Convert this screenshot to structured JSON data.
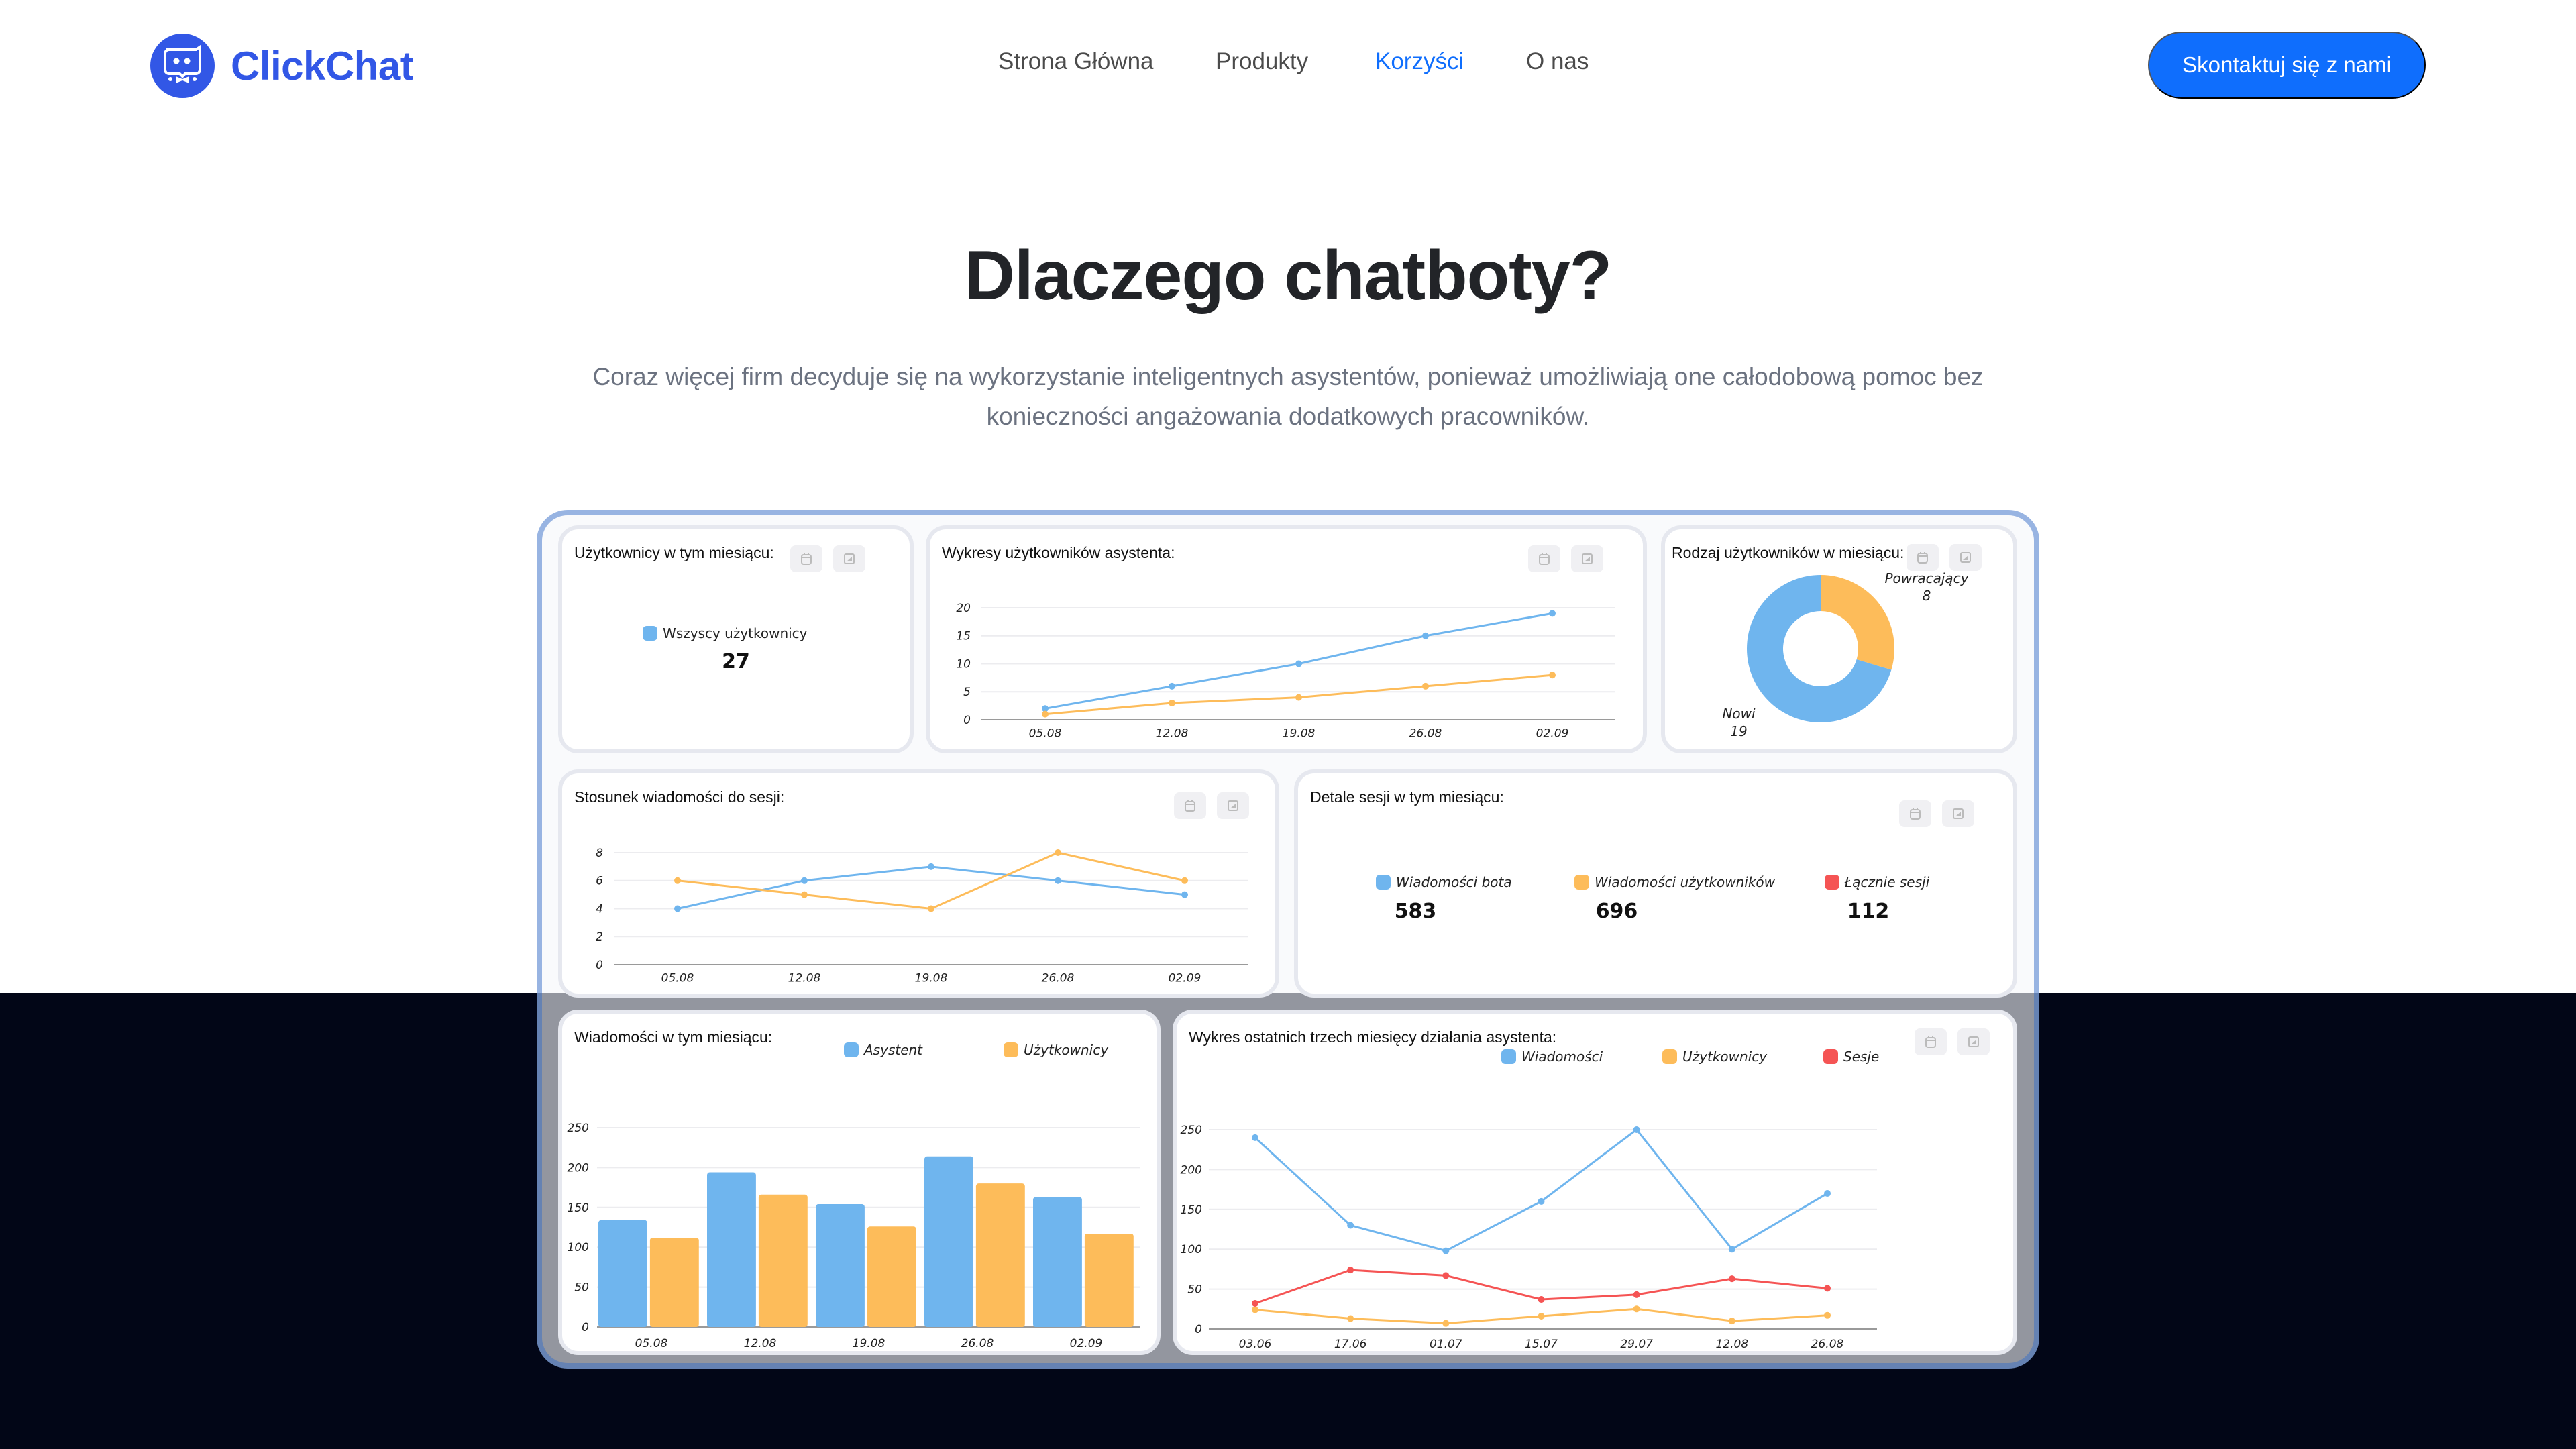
{
  "brand": {
    "name": "ClickChat",
    "color": "#3257e6"
  },
  "nav": {
    "items": [
      {
        "label": "Strona Główna",
        "active": false
      },
      {
        "label": "Produkty",
        "active": false
      },
      {
        "label": "Korzyści",
        "active": true
      },
      {
        "label": "O nas",
        "active": false
      }
    ],
    "cta_label": "Skontaktuj się z nami"
  },
  "hero": {
    "title": "Dlaczego chatboty?",
    "subtitle": "Coraz więcej firm decyduje się na wykorzystanie inteligentnych asystentów, ponieważ umożliwiają one całodobową pomoc bez konieczności angażowania dodatkowych pracowników."
  },
  "colors": {
    "blue": "#6fb5ee",
    "orange": "#fdbc5a",
    "red": "#f55454",
    "accent": "#0f6efd"
  },
  "dashboard": {
    "tool_icons": [
      "calendar-icon",
      "chart-image-icon"
    ],
    "users_card": {
      "title": "Użytkownicy w tym miesiącu:",
      "legend": "Wszyscy użytkownicy",
      "value": "27"
    },
    "users_chart_card": {
      "title": "Wykresy użytkowników asystenta:"
    },
    "user_type_card": {
      "title": "Rodzaj użytkowników w miesiącu:",
      "returning_label": "Powracający",
      "returning_value": "8",
      "new_label": "Nowi",
      "new_value": "19"
    },
    "ratio_card": {
      "title": "Stosunek wiadomości do sesji:"
    },
    "session_card": {
      "title": "Detale sesji w tym miesiącu:",
      "stats": [
        {
          "label": "Wiadomości bota",
          "value": "583"
        },
        {
          "label": "Wiadomości użytkowników",
          "value": "696"
        },
        {
          "label": "Łącznie sesji",
          "value": "112"
        }
      ]
    },
    "messages_card": {
      "title": "Wiadomości w tym miesiącu:",
      "legend": [
        "Asystent",
        "Użytkownicy"
      ]
    },
    "three_months_card": {
      "title": "Wykres ostatnich trzech miesięcy działania asystenta:",
      "legend": [
        "Wiadomości",
        "Użytkownicy",
        "Sesje"
      ]
    }
  },
  "chart_data": [
    {
      "type": "line",
      "title": "Wykresy użytkowników asystenta:",
      "categories": [
        "05.08",
        "12.08",
        "19.08",
        "26.08",
        "02.09"
      ],
      "series": [
        {
          "name": "blue",
          "color": "#6fb5ee",
          "values": [
            2,
            6,
            10,
            15,
            19
          ]
        },
        {
          "name": "orange",
          "color": "#fdbc5a",
          "values": [
            1,
            3,
            4,
            6,
            8
          ]
        }
      ],
      "yticks": [
        0,
        5,
        10,
        15,
        20
      ],
      "ylim": [
        0,
        20
      ],
      "grid": true
    },
    {
      "type": "pie",
      "title": "Rodzaj użytkowników w miesiącu:",
      "categories": [
        "Powracający",
        "Nowi"
      ],
      "values": [
        8,
        19
      ],
      "colors": [
        "#fdbc5a",
        "#6fb5ee"
      ],
      "donut": true
    },
    {
      "type": "line",
      "title": "Stosunek wiadomości do sesji:",
      "categories": [
        "05.08",
        "12.08",
        "19.08",
        "26.08",
        "02.09"
      ],
      "series": [
        {
          "name": "blue",
          "color": "#6fb5ee",
          "values": [
            4,
            6,
            7,
            6,
            5
          ]
        },
        {
          "name": "orange",
          "color": "#fdbc5a",
          "values": [
            6,
            5,
            4,
            8,
            6
          ]
        }
      ],
      "yticks": [
        0,
        2,
        4,
        6,
        8
      ],
      "ylim": [
        0,
        8
      ],
      "grid": true
    },
    {
      "type": "bar",
      "title": "Wiadomości w tym miesiącu:",
      "categories": [
        "05.08",
        "12.08",
        "19.08",
        "26.08",
        "02.09"
      ],
      "series": [
        {
          "name": "Asystent",
          "color": "#6fb5ee",
          "values": [
            134,
            194,
            154,
            214,
            163
          ]
        },
        {
          "name": "Użytkownicy",
          "color": "#fdbc5a",
          "values": [
            112,
            166,
            126,
            180,
            117
          ]
        }
      ],
      "yticks": [
        0,
        50,
        100,
        150,
        200,
        250
      ],
      "ylim": [
        0,
        250
      ],
      "grid": true,
      "legend_position": "top"
    },
    {
      "type": "line",
      "title": "Wykres ostatnich trzech miesięcy działania asystenta:",
      "categories": [
        "03.06",
        "17.06",
        "01.07",
        "15.07",
        "29.07",
        "12.08",
        "26.08"
      ],
      "series": [
        {
          "name": "Wiadomości",
          "color": "#6fb5ee",
          "values": [
            240,
            130,
            98,
            160,
            250,
            100,
            170
          ]
        },
        {
          "name": "Użytkownicy",
          "color": "#fdbc5a",
          "values": [
            24,
            13,
            7,
            16,
            25,
            10,
            17
          ]
        },
        {
          "name": "Sesje",
          "color": "#f55454",
          "values": [
            32,
            74,
            67,
            37,
            43,
            63,
            51
          ]
        }
      ],
      "yticks": [
        0,
        50,
        100,
        150,
        200,
        250
      ],
      "ylim": [
        0,
        250
      ],
      "grid": true,
      "legend_position": "top"
    }
  ]
}
